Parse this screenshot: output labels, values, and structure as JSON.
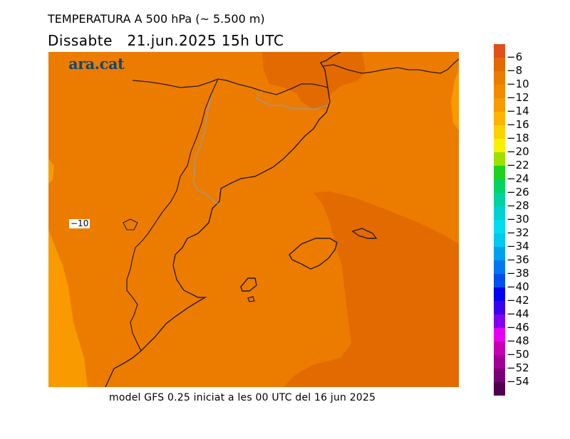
{
  "header": {
    "title": "TEMPERATURA A 500 hPa (~ 5.500 m)",
    "date_line": "Dissabte   21.jun.2025 15h UTC"
  },
  "brand": {
    "logo_text": "ara.cat"
  },
  "map": {
    "contour_label": "−10",
    "colors": {
      "m8_m6": "#e36a00",
      "m10_m8": "#ec7c00",
      "m12_m10": "#f89a00"
    }
  },
  "footer": {
    "model_text": "model GFS 0.25 iniciat a les 00 UTC del 16 jun 2025"
  },
  "legend": {
    "top_color": "#e0501a",
    "levels": [
      {
        "label": "−6",
        "color": "#e36a00"
      },
      {
        "label": "−8",
        "color": "#ec7c00"
      },
      {
        "label": "−10",
        "color": "#f28a00"
      },
      {
        "label": "−12",
        "color": "#f89a00"
      },
      {
        "label": "−14",
        "color": "#fcb400"
      },
      {
        "label": "−16",
        "color": "#fcd200"
      },
      {
        "label": "−18",
        "color": "#f8f000"
      },
      {
        "label": "−20",
        "color": "#9ee000"
      },
      {
        "label": "−22",
        "color": "#1ed21e"
      },
      {
        "label": "−24",
        "color": "#00d264"
      },
      {
        "label": "−26",
        "color": "#00d2a0"
      },
      {
        "label": "−28",
        "color": "#00d2d2"
      },
      {
        "label": "−30",
        "color": "#00dcf0"
      },
      {
        "label": "−32",
        "color": "#00c8f0"
      },
      {
        "label": "−34",
        "color": "#00a0f0"
      },
      {
        "label": "−36",
        "color": "#0078f0"
      },
      {
        "label": "−38",
        "color": "#0050f0"
      },
      {
        "label": "−40",
        "color": "#0000f0"
      },
      {
        "label": "−42",
        "color": "#3c00f0"
      },
      {
        "label": "−44",
        "color": "#8200f0"
      },
      {
        "label": "−46",
        "color": "#e600f0"
      },
      {
        "label": "−48",
        "color": "#c800b4"
      },
      {
        "label": "−50",
        "color": "#a00096"
      },
      {
        "label": "−52",
        "color": "#780078"
      },
      {
        "label": "−54",
        "color": "#500050"
      }
    ]
  }
}
